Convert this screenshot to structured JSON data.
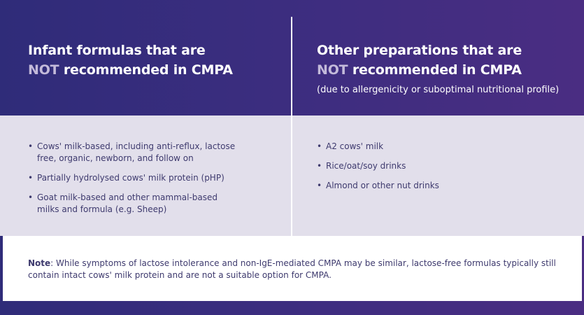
{
  "left_column": {
    "heading_line1": "Infant formulas that are",
    "heading_not": "NOT",
    "heading_line2_rest": " recommended in CMPA",
    "items": [
      "Cows' milk-based, including anti-reflux, lactose free, organic, newborn, and follow on",
      "Partially hydrolysed cows' milk protein (pHP)",
      "Goat milk-based and other mammal-based milks and formula (e.g. Sheep)"
    ]
  },
  "right_column": {
    "heading_line1": "Other preparations that are",
    "heading_not": "NOT",
    "heading_line2_rest": " recommended in CMPA",
    "subheading": "(due to allergenicity or suboptimal nutritional profile)",
    "items": [
      "A2 cows' milk",
      "Rice/oat/soy drinks",
      "Almond or other nut drinks"
    ]
  },
  "note": {
    "label": "Note",
    "text": ": While symptoms of lactose intolerance and non-IgE-mediated CMPA may be similar, lactose-free formulas typically still contain intact cows' milk protein and are not a suitable option for CMPA."
  },
  "bullet": "•",
  "colors": {
    "background_left": "#2f2c79",
    "background_right": "#4a2d82",
    "not_highlight": "#c3bada",
    "list_band": "#e2dfeb",
    "body_text": "#3e3a6e"
  }
}
